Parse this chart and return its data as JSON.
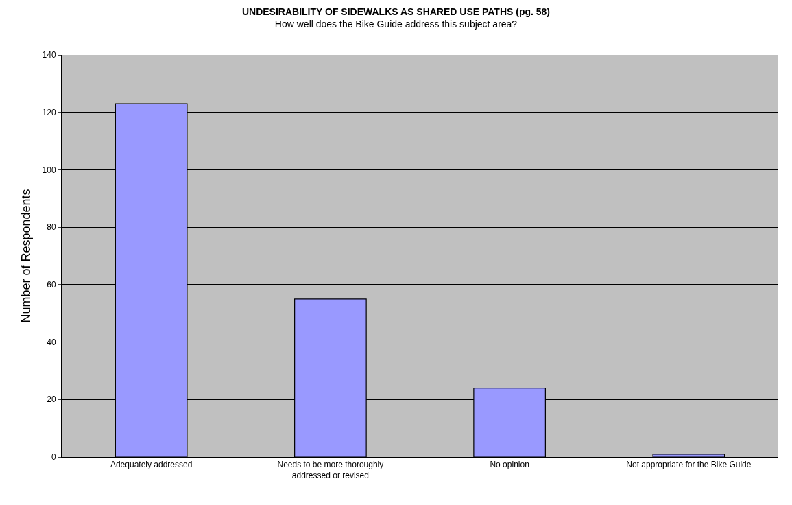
{
  "chart_data": {
    "type": "bar",
    "title": "UNDESIRABILITY OF SIDEWALKS AS SHARED USE PATHS (pg. 58)",
    "subtitle": "How well does the Bike Guide address this subject area?",
    "ylabel": "Number of Respondents",
    "categories": [
      "Adequately addressed",
      "Needs to be more thoroughly addressed or revised",
      "No opinion",
      "Not appropriate for the Bike Guide"
    ],
    "values": [
      123,
      55,
      24,
      1
    ],
    "color": "#9999ff",
    "ylim": [
      0,
      140
    ],
    "yticks": [
      0,
      20,
      40,
      60,
      80,
      100,
      120,
      140
    ],
    "grid": "y"
  }
}
